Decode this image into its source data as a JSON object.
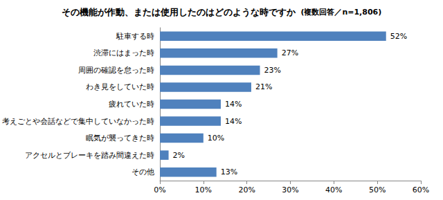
{
  "chart_data": {
    "type": "bar",
    "orientation": "horizontal",
    "title": "その機能が作動、または使用したのはどのような時ですか",
    "subtitle": "(複数回答／n=1,806)",
    "categories": [
      "駐車する時",
      "渋滞にはまった時",
      "周囲の確認を怠った時",
      "わき見をしていた時",
      "疲れていた時",
      "考えごとや会話などで集中していなかった時",
      "眠気が襲ってきた時",
      "アクセルとブレーキを踏み間違えた時",
      "その他"
    ],
    "values": [
      52,
      27,
      23,
      21,
      14,
      14,
      10,
      2,
      13
    ],
    "value_labels": [
      "52%",
      "27%",
      "23%",
      "21%",
      "14%",
      "14%",
      "10%",
      "2%",
      "13%"
    ],
    "data_labels": true,
    "color": "#4f81bd",
    "xlim": [
      0,
      60
    ],
    "xticks": [
      {
        "value": 0,
        "label": "0%"
      },
      {
        "value": 10,
        "label": "10%"
      },
      {
        "value": 20,
        "label": "20%"
      },
      {
        "value": 30,
        "label": "30%"
      },
      {
        "value": 40,
        "label": "40%"
      },
      {
        "value": 50,
        "label": "50%"
      },
      {
        "value": 60,
        "label": "60%"
      }
    ],
    "grid": false
  }
}
